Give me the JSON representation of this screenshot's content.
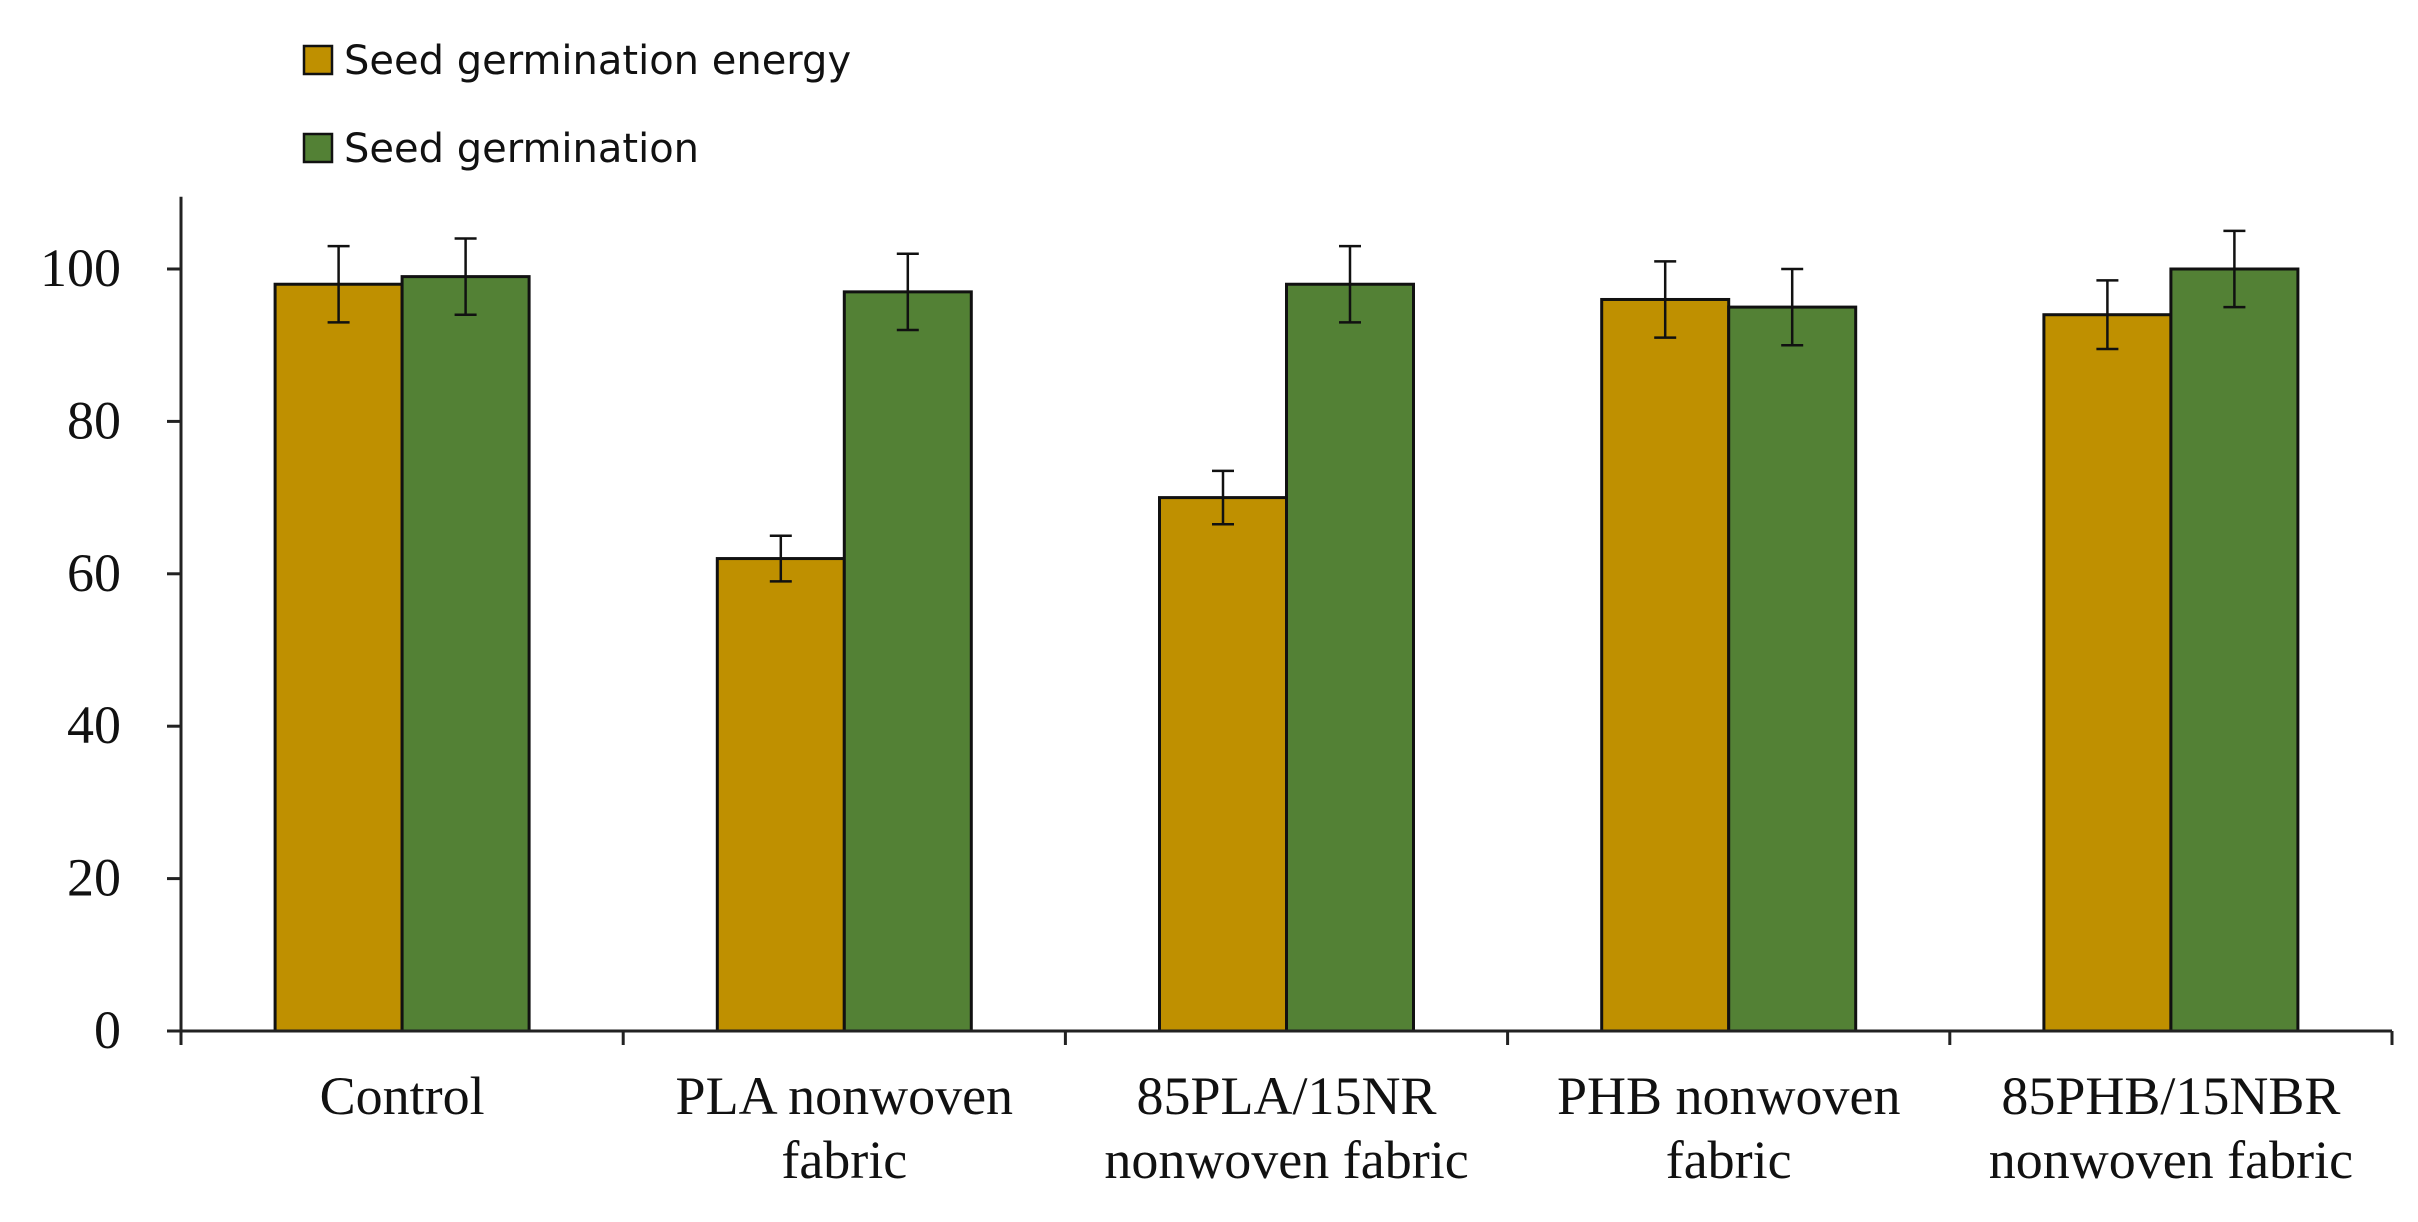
{
  "chart_data": {
    "type": "bar",
    "title": "",
    "xlabel": "",
    "ylabel": "",
    "ylim": [
      0,
      110
    ],
    "yticks": [
      0,
      20,
      40,
      60,
      80,
      100
    ],
    "categories": [
      [
        "Control"
      ],
      [
        "PLA nonwoven",
        "fabric"
      ],
      [
        "85PLA/15NR",
        "nonwoven fabric"
      ],
      [
        "PHB nonwoven",
        "fabric"
      ],
      [
        "85PHB/15NBR",
        "nonwoven fabric"
      ]
    ],
    "series": [
      {
        "name": "Seed germination energy",
        "color": "#BF9000",
        "values": [
          98,
          62,
          70,
          96,
          94
        ],
        "errors": [
          5,
          3,
          3.5,
          5,
          4.5
        ]
      },
      {
        "name": "Seed germination",
        "color": "#538135",
        "values": [
          99,
          97,
          98,
          95,
          100
        ],
        "errors": [
          5,
          5,
          5,
          5,
          5
        ]
      }
    ],
    "legend_position": "top-left"
  }
}
